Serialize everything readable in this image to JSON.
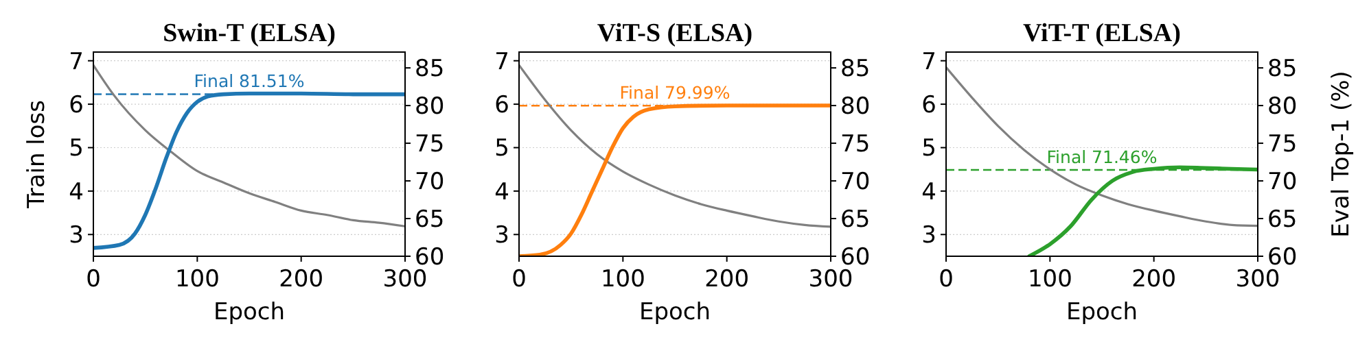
{
  "chart_data": [
    {
      "type": "line",
      "title": "Swin-T (ELSA)",
      "xlabel": "Epoch",
      "ylabel": "Train loss",
      "xlim": [
        0,
        300
      ],
      "xticks": [
        0,
        100,
        200,
        300
      ],
      "ylim": [
        2.5,
        7.2
      ],
      "yticks": [
        3,
        4,
        5,
        6,
        7
      ],
      "y2lim": [
        60,
        87.1
      ],
      "y2ticks": [
        60,
        65,
        70,
        75,
        80,
        85
      ],
      "grid": "y",
      "line_style": "solid",
      "series": [
        {
          "color": "#808080",
          "x": [
            0,
            20,
            50,
            75,
            100,
            125,
            150,
            175,
            200,
            225,
            250,
            275,
            300
          ],
          "values": [
            6.9,
            6.2,
            5.4,
            4.9,
            4.46,
            4.2,
            3.95,
            3.75,
            3.55,
            3.45,
            3.33,
            3.27,
            3.19
          ]
        },
        {
          "color": "#1f77b4",
          "axis": "y2",
          "x": [
            0,
            25,
            40,
            50,
            60,
            70,
            80,
            90,
            100,
            110,
            125,
            150,
            200,
            250,
            300
          ],
          "values": [
            61.1,
            61.5,
            63,
            65.5,
            69,
            73,
            76.5,
            79,
            80.5,
            81.2,
            81.5,
            81.6,
            81.6,
            81.5,
            81.5
          ]
        }
      ],
      "ref_lines": [
        {
          "axis": "y2",
          "value": 81.51,
          "label": "Final 81.51%",
          "color": "#1f77b4",
          "line_style": "dashed"
        }
      ]
    },
    {
      "type": "line",
      "title": "ViT-S (ELSA)",
      "xlabel": "Epoch",
      "xlim": [
        0,
        300
      ],
      "xticks": [
        0,
        100,
        200,
        300
      ],
      "ylim": [
        2.5,
        7.2
      ],
      "yticks": [
        3,
        4,
        5,
        6,
        7
      ],
      "y2lim": [
        60,
        87.1
      ],
      "y2ticks": [
        60,
        65,
        70,
        75,
        80,
        85
      ],
      "grid": "y",
      "line_style": "solid",
      "series": [
        {
          "color": "#808080",
          "x": [
            0,
            25,
            50,
            75,
            100,
            125,
            150,
            175,
            200,
            225,
            250,
            275,
            300
          ],
          "values": [
            6.9,
            6.1,
            5.4,
            4.85,
            4.45,
            4.15,
            3.9,
            3.7,
            3.55,
            3.42,
            3.3,
            3.22,
            3.18
          ]
        },
        {
          "color": "#ff7f0e",
          "axis": "y2",
          "x": [
            0,
            20,
            40,
            50,
            60,
            70,
            80,
            90,
            100,
            110,
            125,
            150,
            200,
            250,
            300
          ],
          "values": [
            60,
            60.2,
            61.5,
            63,
            65.5,
            68.5,
            71.5,
            74.5,
            77,
            78.5,
            79.5,
            79.9,
            80,
            80,
            80
          ]
        }
      ],
      "ref_lines": [
        {
          "axis": "y2",
          "value": 79.99,
          "label": "Final 79.99%",
          "color": "#ff7f0e",
          "line_style": "dashed"
        }
      ]
    },
    {
      "type": "line",
      "title": "ViT-T (ELSA)",
      "xlabel": "Epoch",
      "y2label": "Eval Top-1 (%)",
      "xlim": [
        0,
        300
      ],
      "xticks": [
        0,
        100,
        200,
        300
      ],
      "ylim": [
        2.5,
        7.2
      ],
      "yticks": [
        3,
        4,
        5,
        6,
        7
      ],
      "y2lim": [
        60,
        87.1
      ],
      "y2ticks": [
        60,
        65,
        70,
        75,
        80,
        85
      ],
      "grid": "y",
      "line_style": "solid",
      "series": [
        {
          "color": "#808080",
          "x": [
            0,
            25,
            50,
            75,
            100,
            125,
            150,
            175,
            200,
            225,
            250,
            275,
            300
          ],
          "values": [
            6.85,
            6.15,
            5.5,
            4.95,
            4.5,
            4.15,
            3.9,
            3.7,
            3.55,
            3.42,
            3.3,
            3.22,
            3.2
          ]
        },
        {
          "color": "#2ca02c",
          "axis": "y2",
          "x": [
            80,
            100,
            120,
            140,
            160,
            180,
            200,
            225,
            250,
            275,
            300
          ],
          "values": [
            60,
            61.6,
            64,
            67.5,
            70,
            71.2,
            71.6,
            71.8,
            71.7,
            71.6,
            71.5
          ]
        }
      ],
      "ref_lines": [
        {
          "axis": "y2",
          "value": 71.46,
          "label": "Final 71.46%",
          "color": "#2ca02c",
          "line_style": "dashed"
        }
      ]
    }
  ]
}
